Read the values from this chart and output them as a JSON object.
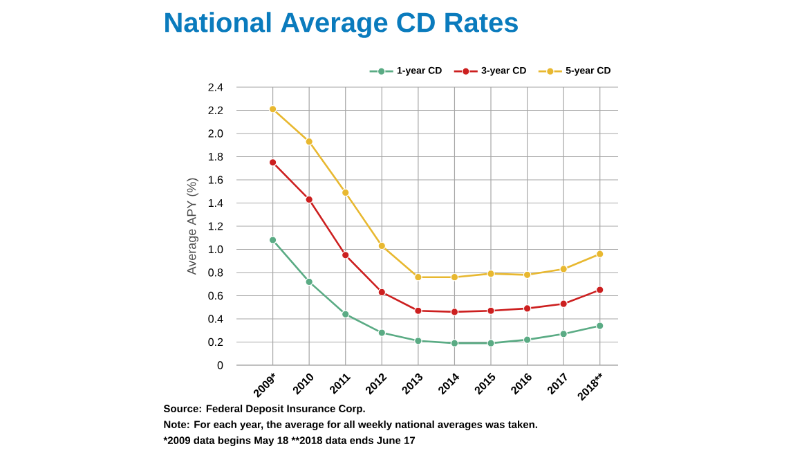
{
  "chart_data": {
    "type": "line",
    "title": "National Average CD Rates",
    "ylabel": "Average APY (%)",
    "categories": [
      "2009*",
      "2010",
      "2011",
      "2012",
      "2013",
      "2014",
      "2015",
      "2016",
      "2017",
      "2018**"
    ],
    "series": [
      {
        "name": "1-year CD",
        "color": "#5aab84",
        "values": [
          1.08,
          0.72,
          0.44,
          0.28,
          0.21,
          0.19,
          0.19,
          0.22,
          0.27,
          0.34
        ]
      },
      {
        "name": "3-year CD",
        "color": "#cc1f1f",
        "values": [
          1.75,
          1.43,
          0.95,
          0.63,
          0.47,
          0.46,
          0.47,
          0.49,
          0.53,
          0.65
        ]
      },
      {
        "name": "5-year CD",
        "color": "#e8b830",
        "values": [
          2.21,
          1.93,
          1.49,
          1.03,
          0.76,
          0.76,
          0.79,
          0.78,
          0.83,
          0.96
        ]
      }
    ],
    "ylim": [
      0,
      2.4
    ],
    "yticks": [
      0,
      0.2,
      0.4,
      0.6,
      0.8,
      {
        "value": 1,
        "label": "1.0"
      },
      1.2,
      1.4,
      1.6,
      1.8,
      {
        "value": 2,
        "label": "2.0"
      },
      2.2,
      2.4
    ],
    "grid": true,
    "legend": "top right",
    "marker": "circle",
    "line_style": "solid",
    "annotations": [
      "Source: Federal Deposit Insurance Corp.",
      "Note: For each year, the average for all weekly national averages was taken.",
      "*2009 data begins May 18     **2018 data ends June 17"
    ]
  }
}
